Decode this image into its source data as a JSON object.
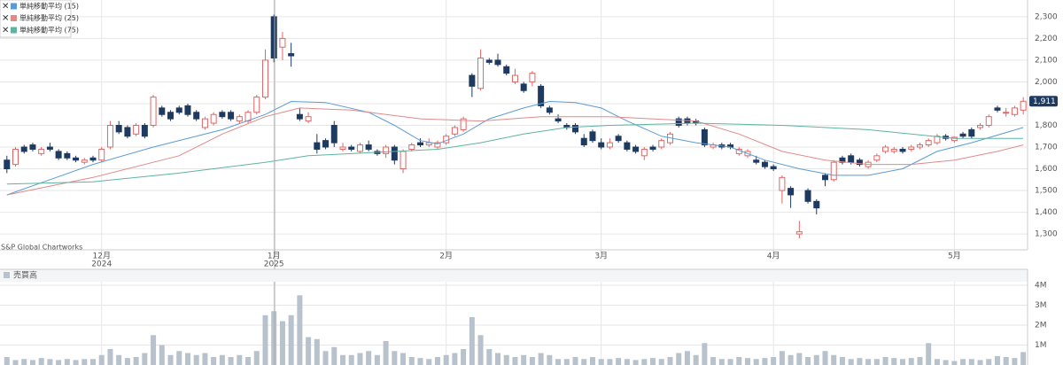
{
  "chart_data": [
    {
      "type": "candlestick",
      "legend": "top-left",
      "watermark": "S&P Global Chartworks",
      "last_label": "1,911",
      "up_color": "#e06666",
      "down_color": "#1f3a60",
      "xlim": [
        -0.8,
        118.5
      ],
      "xticks": [
        {
          "value": 11,
          "label": "12月"
        },
        {
          "value": 31,
          "label": "1月"
        },
        {
          "value": 51,
          "label": "2月"
        },
        {
          "value": 69,
          "label": "3月"
        },
        {
          "value": 89,
          "label": "4月"
        },
        {
          "value": 110,
          "label": "5月"
        }
      ],
      "xtick_years": [
        {
          "value": 11,
          "label": "2024"
        },
        {
          "value": 31,
          "label": "2025"
        }
      ],
      "ylim": [
        1227,
        2377
      ],
      "yticks": [
        {
          "value": 1300,
          "label": "1,300"
        },
        {
          "value": 1400,
          "label": "1,400"
        },
        {
          "value": 1500,
          "label": "1,500"
        },
        {
          "value": 1600,
          "label": "1,600"
        },
        {
          "value": 1700,
          "label": "1,700"
        },
        {
          "value": 1800,
          "label": "1,800"
        },
        {
          "value": 1900,
          "label": "1,900"
        },
        {
          "value": 2000,
          "label": "2,000"
        },
        {
          "value": 2100,
          "label": "2,100"
        },
        {
          "value": 2200,
          "label": "2,200"
        },
        {
          "value": 2300,
          "label": "2,300"
        }
      ],
      "grid": true,
      "open": [
        1640,
        1620,
        1700,
        1710,
        1670,
        1700,
        1680,
        1670,
        1650,
        1630,
        1650,
        1640,
        1700,
        1800,
        1790,
        1760,
        1800,
        1800,
        1880,
        1860,
        1880,
        1890,
        1860,
        1790,
        1810,
        1860,
        1860,
        1820,
        1820,
        1860,
        1930,
        2300,
        2160,
        2130,
        1850,
        1820,
        1720,
        1730,
        1800,
        1690,
        1700,
        1680,
        1710,
        1680,
        1670,
        1700,
        1600,
        1690,
        1720,
        1710,
        1700,
        1720,
        1760,
        1780,
        2030,
        1970,
        2100,
        2100,
        2070,
        2000,
        1990,
        2000,
        1980,
        1880,
        1830,
        1800,
        1800,
        1740,
        1770,
        1720,
        1700,
        1750,
        1720,
        1700,
        1660,
        1700,
        1700,
        1720,
        1830,
        1830,
        1820,
        1780,
        1700,
        1710,
        1710,
        1670,
        1660,
        1640,
        1630,
        1610,
        1500,
        1510,
        1300,
        1500,
        1450,
        1570,
        1550,
        1650,
        1660,
        1640,
        1610,
        1640,
        1680,
        1680,
        1690,
        1690,
        1700,
        1710,
        1720,
        1750,
        1730,
        1760,
        1780,
        1790,
        1800,
        1880,
        1860,
        1850,
        1870
      ],
      "high": [
        1660,
        1700,
        1710,
        1720,
        1700,
        1720,
        1690,
        1680,
        1660,
        1650,
        1660,
        1700,
        1820,
        1820,
        1800,
        1810,
        1810,
        1940,
        1890,
        1870,
        1890,
        1900,
        1870,
        1840,
        1860,
        1870,
        1870,
        1850,
        1870,
        1940,
        2150,
        2310,
        2230,
        2180,
        1880,
        1860,
        1760,
        1740,
        1820,
        1720,
        1710,
        1720,
        1730,
        1690,
        1710,
        1710,
        1690,
        1720,
        1740,
        1740,
        1730,
        1760,
        1800,
        1840,
        2040,
        2150,
        2110,
        2130,
        2080,
        2060,
        2000,
        2050,
        1990,
        1890,
        1850,
        1810,
        1810,
        1760,
        1780,
        1740,
        1740,
        1760,
        1730,
        1710,
        1700,
        1710,
        1740,
        1770,
        1840,
        1840,
        1830,
        1790,
        1720,
        1720,
        1720,
        1700,
        1690,
        1660,
        1640,
        1620,
        1570,
        1520,
        1360,
        1510,
        1460,
        1580,
        1640,
        1660,
        1670,
        1650,
        1640,
        1670,
        1710,
        1700,
        1700,
        1710,
        1720,
        1740,
        1760,
        1760,
        1750,
        1770,
        1790,
        1810,
        1850,
        1890,
        1880,
        1890,
        1930
      ],
      "low": [
        1580,
        1610,
        1670,
        1680,
        1660,
        1680,
        1640,
        1640,
        1630,
        1620,
        1630,
        1630,
        1690,
        1760,
        1740,
        1750,
        1740,
        1790,
        1840,
        1820,
        1850,
        1840,
        1820,
        1780,
        1800,
        1830,
        1820,
        1810,
        1810,
        1850,
        1920,
        2090,
        2100,
        2070,
        1820,
        1810,
        1670,
        1690,
        1700,
        1680,
        1680,
        1670,
        1680,
        1660,
        1650,
        1620,
        1580,
        1680,
        1700,
        1700,
        1690,
        1710,
        1750,
        1770,
        1930,
        1960,
        2080,
        2070,
        2030,
        1990,
        1950,
        1980,
        1880,
        1850,
        1810,
        1780,
        1760,
        1700,
        1720,
        1690,
        1690,
        1720,
        1680,
        1670,
        1640,
        1680,
        1690,
        1710,
        1790,
        1800,
        1800,
        1700,
        1690,
        1690,
        1690,
        1660,
        1650,
        1620,
        1600,
        1590,
        1440,
        1420,
        1280,
        1440,
        1390,
        1520,
        1540,
        1620,
        1620,
        1610,
        1600,
        1630,
        1670,
        1670,
        1670,
        1680,
        1690,
        1700,
        1710,
        1730,
        1720,
        1740,
        1740,
        1780,
        1790,
        1860,
        1840,
        1840,
        1850
      ],
      "close": [
        1600,
        1690,
        1680,
        1690,
        1690,
        1690,
        1650,
        1650,
        1640,
        1640,
        1640,
        1690,
        1800,
        1770,
        1750,
        1800,
        1750,
        1930,
        1850,
        1830,
        1860,
        1850,
        1830,
        1830,
        1850,
        1840,
        1830,
        1840,
        1860,
        1930,
        2100,
        2110,
        2200,
        2120,
        1830,
        1840,
        1690,
        1700,
        1720,
        1700,
        1690,
        1710,
        1690,
        1670,
        1700,
        1640,
        1680,
        1710,
        1710,
        1720,
        1720,
        1750,
        1790,
        1830,
        1980,
        2110,
        2090,
        2080,
        2040,
        2030,
        1960,
        2040,
        1890,
        1860,
        1820,
        1790,
        1770,
        1710,
        1730,
        1700,
        1720,
        1730,
        1690,
        1680,
        1690,
        1690,
        1730,
        1760,
        1800,
        1810,
        1810,
        1710,
        1710,
        1700,
        1700,
        1690,
        1680,
        1630,
        1610,
        1600,
        1560,
        1480,
        1310,
        1450,
        1420,
        1550,
        1630,
        1630,
        1630,
        1620,
        1630,
        1660,
        1700,
        1690,
        1680,
        1700,
        1710,
        1730,
        1750,
        1740,
        1745,
        1750,
        1750,
        1800,
        1840,
        1870,
        1860,
        1880,
        1911
      ],
      "series": [
        {
          "name": "単純移動平均 (15)",
          "color": "#5b9bd5",
          "x": [
            0,
            5,
            10,
            17,
            25,
            30,
            33,
            37,
            42,
            45,
            48,
            50,
            53,
            56,
            60,
            63,
            66,
            69,
            72,
            76,
            80,
            84,
            88,
            92,
            96,
            100,
            104,
            108,
            112,
            118
          ],
          "values": [
            1480,
            1550,
            1620,
            1700,
            1780,
            1850,
            1910,
            1905,
            1860,
            1800,
            1730,
            1715,
            1760,
            1830,
            1880,
            1910,
            1905,
            1880,
            1820,
            1750,
            1720,
            1700,
            1640,
            1600,
            1570,
            1570,
            1600,
            1680,
            1720,
            1790
          ]
        },
        {
          "name": "単純移動平均 (25)",
          "color": "#e08a8a",
          "x": [
            0,
            10,
            20,
            25,
            30,
            34,
            40,
            48,
            55,
            62,
            70,
            80,
            85,
            90,
            95,
            100,
            105,
            110,
            115,
            118
          ],
          "values": [
            1480,
            1560,
            1660,
            1760,
            1840,
            1880,
            1870,
            1830,
            1820,
            1840,
            1840,
            1820,
            1760,
            1680,
            1640,
            1620,
            1620,
            1640,
            1680,
            1710
          ]
        },
        {
          "name": "単純移動平均 (75)",
          "color": "#5fb3a1",
          "x": [
            0,
            10,
            20,
            30,
            35,
            40,
            50,
            55,
            60,
            65,
            70,
            80,
            90,
            100,
            110,
            118
          ],
          "values": [
            1530,
            1540,
            1580,
            1630,
            1660,
            1670,
            1690,
            1720,
            1760,
            1790,
            1800,
            1810,
            1800,
            1780,
            1740,
            1740
          ]
        }
      ]
    },
    {
      "type": "bar",
      "title": "売買高",
      "color": "#b7c2cc",
      "ylim": [
        0,
        4180000
      ],
      "yticks": [
        {
          "value": 1000000,
          "label": "1M"
        },
        {
          "value": 2000000,
          "label": "2M"
        },
        {
          "value": 3000000,
          "label": "3M"
        },
        {
          "value": 4000000,
          "label": "4M"
        }
      ],
      "values": [
        400000,
        250000,
        300000,
        250000,
        350000,
        300000,
        250000,
        300000,
        250000,
        300000,
        300000,
        500000,
        800000,
        500000,
        350000,
        400000,
        600000,
        1500000,
        1000000,
        500000,
        700000,
        600000,
        500000,
        600000,
        400000,
        500000,
        400000,
        500000,
        400000,
        700000,
        2500000,
        2700000,
        2200000,
        2500000,
        3500000,
        1400000,
        1300000,
        700000,
        900000,
        500000,
        500000,
        600000,
        700000,
        500000,
        1200000,
        700000,
        600000,
        400000,
        350000,
        300000,
        400000,
        500000,
        600000,
        800000,
        2400000,
        1500000,
        800000,
        600000,
        500000,
        400000,
        500000,
        400000,
        600000,
        500000,
        300000,
        300000,
        400000,
        300000,
        400000,
        300000,
        300000,
        350000,
        300000,
        250000,
        300000,
        350000,
        300000,
        400000,
        600000,
        700000,
        500000,
        1100000,
        400000,
        300000,
        300000,
        400000,
        350000,
        300000,
        350000,
        400000,
        700000,
        500000,
        600000,
        400000,
        500000,
        700000,
        500000,
        400000,
        300000,
        350000,
        300000,
        300000,
        400000,
        350000,
        300000,
        350000,
        400000,
        1100000,
        300000,
        250000,
        200000,
        300000,
        300000,
        250000,
        300000,
        450000,
        400000,
        350000,
        650000
      ]
    }
  ]
}
